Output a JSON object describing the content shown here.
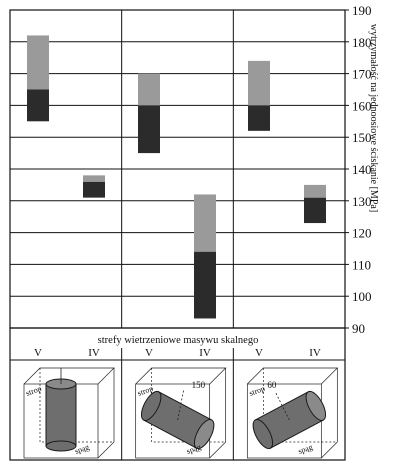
{
  "chart_data": {
    "type": "bar",
    "subtype": "floating-stacked-range",
    "ylabel": "wytrzymałość na jednoosiowe ściskanie [MPa]",
    "xlabel": "strefy wietrzeniowe masywu skalnego",
    "ylim": [
      90,
      190
    ],
    "yticks": [
      90,
      100,
      110,
      120,
      130,
      140,
      150,
      160,
      170,
      180,
      190
    ],
    "grid": true,
    "categories": [
      "V",
      "IV",
      "V",
      "IV",
      "V",
      "IV"
    ],
    "series": [
      {
        "color": "#2b2b2b",
        "ranges": [
          [
            155,
            165
          ],
          [
            131,
            136
          ],
          [
            145,
            160
          ],
          [
            93,
            114
          ],
          [
            152,
            160
          ],
          [
            123,
            131
          ]
        ]
      },
      {
        "color": "#9a9a9a",
        "ranges": [
          [
            165,
            182
          ],
          [
            136,
            138
          ],
          [
            160,
            170
          ],
          [
            114,
            132
          ],
          [
            160,
            174
          ],
          [
            131,
            135
          ]
        ]
      }
    ],
    "annotations": [
      {
        "panel": 0,
        "labels": [
          "strop",
          "spąg"
        ]
      },
      {
        "panel": 1,
        "labels": [
          "strop",
          "150",
          "spąg"
        ]
      },
      {
        "panel": 2,
        "labels": [
          "strop",
          "60",
          "spąg"
        ]
      }
    ]
  }
}
